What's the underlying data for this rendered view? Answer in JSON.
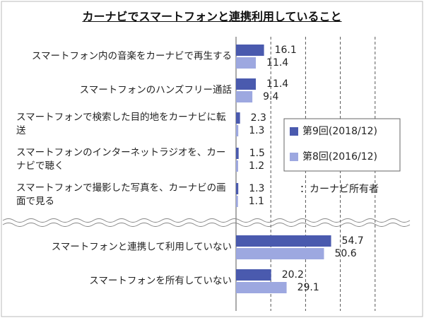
{
  "chart_data": {
    "type": "hbar",
    "title": "カーナビでスマートフォンと連携利用していること",
    "annotation": "：カーナビ所有者",
    "categories": [
      "スマートフォン内の音楽をカーナビで再生する",
      "スマートフォンのハンズフリー通話",
      "スマートフォンで検索した目的地をカーナビに転送",
      "スマートフォンのインターネットラジオを、カーナビで聴く",
      "スマートフォンで撮影した写真を、カーナビの画面で見る",
      "スマートフォンと連携して利用していない",
      "スマートフォンを所有していない"
    ],
    "series": [
      {
        "name": "第9回(2018/12)",
        "color": "#4a5aae",
        "values": [
          16.1,
          11.4,
          2.3,
          1.5,
          1.3,
          54.7,
          20.2
        ]
      },
      {
        "name": "第8回(2016/12)",
        "color": "#9da8e0",
        "values": [
          11.4,
          9.4,
          1.3,
          1.2,
          1.1,
          50.6,
          29.1
        ]
      }
    ],
    "xlim": [
      0,
      100
    ],
    "xticks": [
      20,
      40,
      60,
      80
    ],
    "grid": true
  }
}
